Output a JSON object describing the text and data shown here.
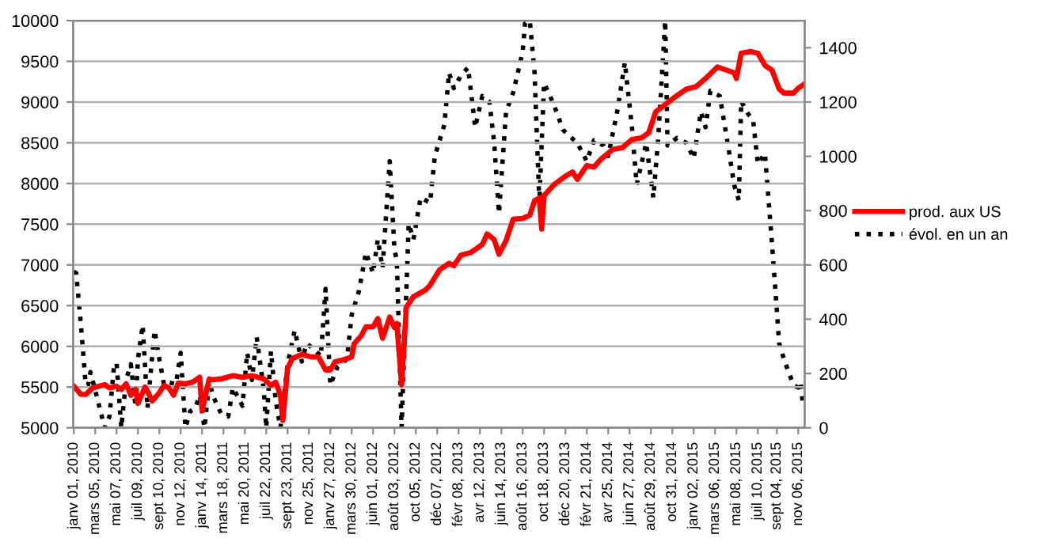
{
  "chart_data": {
    "type": "line",
    "xlim": [
      "2009-12-30",
      "2015-11-25"
    ],
    "xticks": [
      {
        "value": "2010-01-01",
        "label": "janv 01, 2010"
      },
      {
        "value": "2010-03-05",
        "label": "mars 05, 2010"
      },
      {
        "value": "2010-05-07",
        "label": "mai 07, 2010"
      },
      {
        "value": "2010-07-09",
        "label": "juil 09, 2010"
      },
      {
        "value": "2010-09-10",
        "label": "sept 10, 2010"
      },
      {
        "value": "2010-11-12",
        "label": "nov 12, 2010"
      },
      {
        "value": "2011-01-14",
        "label": "janv 14, 2011"
      },
      {
        "value": "2011-03-18",
        "label": "mars 18, 2011"
      },
      {
        "value": "2011-05-20",
        "label": "mai 20, 2011"
      },
      {
        "value": "2011-07-22",
        "label": "juil 22, 2011"
      },
      {
        "value": "2011-09-23",
        "label": "sept 23, 2011"
      },
      {
        "value": "2011-11-25",
        "label": "nov 25, 2011"
      },
      {
        "value": "2012-01-27",
        "label": "janv 27, 2012"
      },
      {
        "value": "2012-03-30",
        "label": "mars 30, 2012"
      },
      {
        "value": "2012-06-01",
        "label": "juin 01, 2012"
      },
      {
        "value": "2012-08-03",
        "label": "août 03, 2012"
      },
      {
        "value": "2012-10-05",
        "label": "oct 05, 2012"
      },
      {
        "value": "2012-12-07",
        "label": "déc 07, 2012"
      },
      {
        "value": "2013-02-08",
        "label": "févr 08, 2013"
      },
      {
        "value": "2013-04-12",
        "label": "avr 12, 2013"
      },
      {
        "value": "2013-06-14",
        "label": "juin 14, 2013"
      },
      {
        "value": "2013-08-16",
        "label": "août 16, 2013"
      },
      {
        "value": "2013-10-18",
        "label": "oct 18, 2013"
      },
      {
        "value": "2013-12-20",
        "label": "déc 20, 2013"
      },
      {
        "value": "2014-02-21",
        "label": "févr 21, 2014"
      },
      {
        "value": "2014-04-25",
        "label": "avr 25, 2014"
      },
      {
        "value": "2014-06-27",
        "label": "juin 27, 2014"
      },
      {
        "value": "2014-08-29",
        "label": "août 29, 2014"
      },
      {
        "value": "2014-10-31",
        "label": "oct 31, 2014"
      },
      {
        "value": "2015-01-02",
        "label": "janv 02, 2015"
      },
      {
        "value": "2015-03-06",
        "label": "mars 06, 2015"
      },
      {
        "value": "2015-05-08",
        "label": "mai 08, 2015"
      },
      {
        "value": "2015-07-10",
        "label": "juil 10, 2015"
      },
      {
        "value": "2015-09-04",
        "label": "sept 04, 2015"
      },
      {
        "value": "2015-11-06",
        "label": "nov 06, 2015"
      }
    ],
    "ylim": [
      5000,
      10000
    ],
    "yticks": [
      5000,
      5500,
      6000,
      6500,
      7000,
      7500,
      8000,
      8500,
      9000,
      9500,
      10000
    ],
    "y2lim": [
      0,
      1500
    ],
    "y2ticks": [
      0,
      200,
      400,
      600,
      800,
      1000,
      1200,
      1400
    ],
    "grid": "y",
    "legend": "right",
    "series": [
      {
        "name": "prod. aux US",
        "color": "#ff0000",
        "line_style": "solid",
        "x": [
          "2010-01-01",
          "2010-01-22",
          "2010-02-05",
          "2010-02-26",
          "2010-04-02",
          "2010-04-16",
          "2010-05-07",
          "2010-05-21",
          "2010-06-04",
          "2010-06-18",
          "2010-07-02",
          "2010-07-09",
          "2010-07-30",
          "2010-08-06",
          "2010-08-20",
          "2010-09-10",
          "2010-09-24",
          "2010-10-08",
          "2010-10-22",
          "2010-11-05",
          "2010-11-26",
          "2010-12-17",
          "2011-01-07",
          "2011-01-14",
          "2011-02-04",
          "2011-02-11",
          "2011-03-11",
          "2011-04-15",
          "2011-05-13",
          "2011-06-10",
          "2011-07-15",
          "2011-08-05",
          "2011-08-19",
          "2011-09-02",
          "2011-09-09",
          "2011-09-23",
          "2011-10-07",
          "2011-11-04",
          "2011-12-02",
          "2011-12-23",
          "2012-01-13",
          "2012-01-27",
          "2012-02-10",
          "2012-03-02",
          "2012-03-30",
          "2012-04-06",
          "2012-04-27",
          "2012-05-11",
          "2012-06-01",
          "2012-06-15",
          "2012-06-29",
          "2012-07-20",
          "2012-08-03",
          "2012-08-10",
          "2012-08-24",
          "2012-09-07",
          "2012-09-28",
          "2012-11-02",
          "2012-11-16",
          "2012-12-14",
          "2013-01-11",
          "2013-01-25",
          "2013-02-15",
          "2013-03-15",
          "2013-04-19",
          "2013-05-03",
          "2013-05-24",
          "2013-06-07",
          "2013-06-28",
          "2013-07-19",
          "2013-08-16",
          "2013-09-06",
          "2013-09-20",
          "2013-10-04",
          "2013-10-11",
          "2013-10-18",
          "2013-11-15",
          "2013-12-20",
          "2014-01-10",
          "2014-01-24",
          "2014-02-21",
          "2014-03-14",
          "2014-04-04",
          "2014-05-09",
          "2014-06-06",
          "2014-07-04",
          "2014-08-01",
          "2014-08-22",
          "2014-09-12",
          "2014-10-10",
          "2014-11-07",
          "2014-12-12",
          "2015-01-09",
          "2015-02-06",
          "2015-03-13",
          "2015-04-10",
          "2015-05-01",
          "2015-05-08",
          "2015-05-22",
          "2015-06-19",
          "2015-07-10",
          "2015-07-31",
          "2015-08-21",
          "2015-09-11",
          "2015-09-25",
          "2015-10-23",
          "2015-11-06",
          "2015-11-20"
        ],
        "values": [
          5510,
          5410,
          5410,
          5490,
          5530,
          5490,
          5510,
          5470,
          5540,
          5400,
          5470,
          5300,
          5500,
          5450,
          5330,
          5430,
          5520,
          5490,
          5400,
          5550,
          5540,
          5560,
          5620,
          5210,
          5600,
          5590,
          5600,
          5640,
          5620,
          5640,
          5600,
          5520,
          5560,
          5400,
          5090,
          5730,
          5850,
          5900,
          5870,
          5870,
          5710,
          5710,
          5810,
          5830,
          5870,
          6030,
          6130,
          6240,
          6240,
          6340,
          6100,
          6360,
          6230,
          6280,
          5530,
          6480,
          6610,
          6690,
          6750,
          6940,
          7020,
          6990,
          7120,
          7150,
          7250,
          7380,
          7310,
          7130,
          7300,
          7560,
          7570,
          7610,
          7790,
          7820,
          7440,
          7850,
          7980,
          8090,
          8140,
          8050,
          8220,
          8200,
          8300,
          8420,
          8440,
          8540,
          8560,
          8620,
          8880,
          8970,
          9060,
          9160,
          9190,
          9290,
          9430,
          9390,
          9360,
          9290,
          9600,
          9620,
          9600,
          9450,
          9390,
          9160,
          9110,
          9110,
          9170,
          9210
        ]
      },
      {
        "name": "évol. en un an",
        "color": "#000000",
        "line_style": "dotted",
        "axis": "y2",
        "x": [
          "2010-01-01",
          "2010-01-08",
          "2010-01-22",
          "2010-02-05",
          "2010-02-12",
          "2010-02-19",
          "2010-03-05",
          "2010-04-02",
          "2010-04-16",
          "2010-04-30",
          "2010-05-07",
          "2010-05-21",
          "2010-06-04",
          "2010-06-18",
          "2010-07-02",
          "2010-07-09",
          "2010-07-23",
          "2010-08-06",
          "2010-08-27",
          "2010-09-10",
          "2010-09-24",
          "2010-10-08",
          "2010-10-29",
          "2010-11-12",
          "2010-11-26",
          "2010-12-10",
          "2010-12-24",
          "2011-01-07",
          "2011-01-21",
          "2011-02-04",
          "2011-02-18",
          "2011-03-11",
          "2011-04-01",
          "2011-04-15",
          "2011-05-13",
          "2011-05-27",
          "2011-06-10",
          "2011-06-24",
          "2011-07-15",
          "2011-07-22",
          "2011-08-05",
          "2011-08-19",
          "2011-09-02",
          "2011-09-23",
          "2011-10-14",
          "2011-11-04",
          "2011-11-18",
          "2011-12-16",
          "2011-12-30",
          "2012-01-13",
          "2012-01-27",
          "2012-02-17",
          "2012-03-16",
          "2012-03-30",
          "2012-04-20",
          "2012-05-11",
          "2012-06-01",
          "2012-06-15",
          "2012-06-29",
          "2012-07-20",
          "2012-08-03",
          "2012-08-10",
          "2012-08-24",
          "2012-09-14",
          "2012-09-28",
          "2012-10-19",
          "2012-11-16",
          "2012-11-30",
          "2012-12-28",
          "2013-01-11",
          "2013-01-25",
          "2013-02-15",
          "2013-03-08",
          "2013-03-29",
          "2013-04-19",
          "2013-05-10",
          "2013-05-24",
          "2013-06-07",
          "2013-06-28",
          "2013-07-19",
          "2013-08-16",
          "2013-08-23",
          "2013-09-06",
          "2013-09-20",
          "2013-10-04",
          "2013-10-18",
          "2013-11-15",
          "2013-12-13",
          "2014-01-24",
          "2014-02-21",
          "2014-03-14",
          "2014-04-11",
          "2014-04-25",
          "2014-05-23",
          "2014-06-13",
          "2014-07-04",
          "2014-07-18",
          "2014-08-15",
          "2014-09-05",
          "2014-09-19",
          "2014-10-10",
          "2014-10-17",
          "2014-11-14",
          "2014-12-12",
          "2015-01-02",
          "2015-01-23",
          "2015-02-06",
          "2015-02-20",
          "2015-03-20",
          "2015-04-17",
          "2015-05-01",
          "2015-05-15",
          "2015-05-22",
          "2015-06-12",
          "2015-06-26",
          "2015-07-10",
          "2015-07-31",
          "2015-08-21",
          "2015-09-11",
          "2015-09-25",
          "2015-10-23",
          "2015-11-06",
          "2015-11-13",
          "2015-11-20"
        ],
        "values": [
          575,
          570,
          378,
          157,
          157,
          205,
          138,
          0,
          42,
          234,
          238,
          0,
          176,
          234,
          77,
          253,
          378,
          71,
          359,
          253,
          157,
          167,
          161,
          276,
          0,
          61,
          71,
          119,
          0,
          167,
          109,
          52,
          42,
          148,
          81,
          276,
          176,
          334,
          138,
          0,
          282,
          100,
          0,
          234,
          359,
          244,
          311,
          282,
          263,
          512,
          157,
          224,
          253,
          416,
          502,
          646,
          570,
          694,
          589,
          982,
          656,
          617,
          0,
          752,
          694,
          848,
          829,
          1001,
          1116,
          1308,
          1251,
          1298,
          1327,
          1107,
          1222,
          1200,
          1050,
          790,
          1165,
          1235,
          1385,
          1490,
          1500,
          1308,
          829,
          1270,
          1193,
          1097,
          1049,
          982,
          1059,
          1040,
          1001,
          1174,
          1346,
          1107,
          896,
          1049,
          848,
          1059,
          1500,
          1040,
          1068,
          1049,
          992,
          1164,
          1107,
          1241,
          1222,
          1011,
          896,
          838,
          1203,
          1155,
          1136,
          972,
          1011,
          675,
          311,
          253,
          157,
          148,
          167,
          84
        ]
      }
    ]
  }
}
